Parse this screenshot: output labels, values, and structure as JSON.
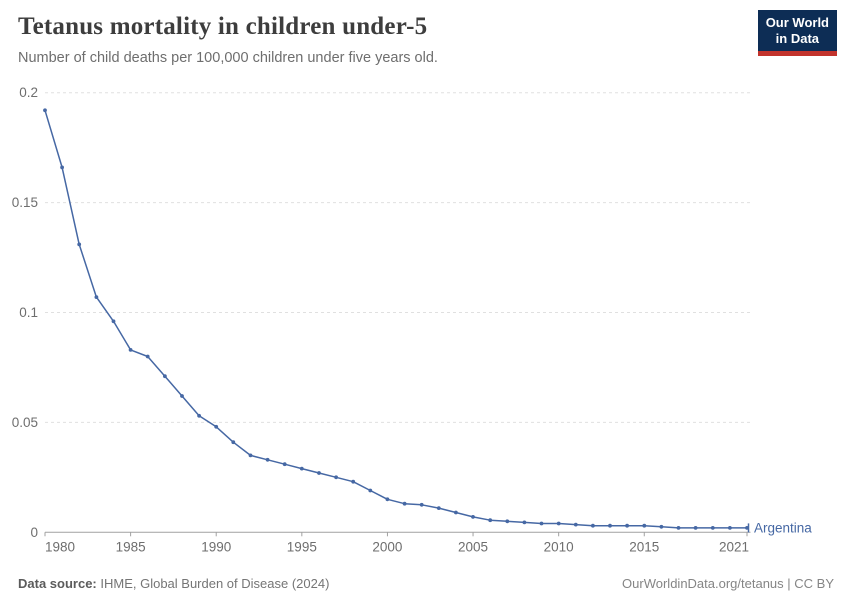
{
  "header": {
    "title": "Tetanus mortality in children under-5",
    "subtitle": "Number of child deaths per 100,000 children under five years old."
  },
  "logo": {
    "line1": "Our World",
    "line2": "in Data"
  },
  "chart_data": {
    "type": "line",
    "title": "Tetanus mortality in children under-5",
    "subtitle": "Number of child deaths per 100,000 children under five years old.",
    "xlabel": "",
    "ylabel": "",
    "xlim": [
      1980,
      2021
    ],
    "ylim": [
      0,
      0.2
    ],
    "grid": "horizontal-dashed",
    "legend_position": "end-of-line",
    "xticks": [
      1980,
      1985,
      1990,
      1995,
      2000,
      2005,
      2010,
      2015,
      2021
    ],
    "yticks": [
      0,
      0.05,
      0.1,
      0.15,
      0.2
    ],
    "ytick_labels": [
      "0",
      "0.05",
      "0.1",
      "0.15",
      "0.2"
    ],
    "x": [
      1980,
      1981,
      1982,
      1983,
      1984,
      1985,
      1986,
      1987,
      1988,
      1989,
      1990,
      1991,
      1992,
      1993,
      1994,
      1995,
      1996,
      1997,
      1998,
      1999,
      2000,
      2001,
      2002,
      2003,
      2004,
      2005,
      2006,
      2007,
      2008,
      2009,
      2010,
      2011,
      2012,
      2013,
      2014,
      2015,
      2016,
      2017,
      2018,
      2019,
      2020,
      2021
    ],
    "series": [
      {
        "name": "Argentina",
        "color": "#4668a4",
        "values": [
          0.192,
          0.166,
          0.131,
          0.107,
          0.096,
          0.083,
          0.08,
          0.071,
          0.062,
          0.053,
          0.048,
          0.041,
          0.035,
          0.033,
          0.031,
          0.029,
          0.027,
          0.025,
          0.023,
          0.019,
          0.015,
          0.013,
          0.0125,
          0.011,
          0.009,
          0.007,
          0.0055,
          0.005,
          0.0045,
          0.004,
          0.004,
          0.0035,
          0.003,
          0.003,
          0.003,
          0.003,
          0.0025,
          0.002,
          0.002,
          0.002,
          0.002,
          0.002
        ]
      }
    ]
  },
  "footer": {
    "source_label": "Data source:",
    "source_value": " IHME, Global Burden of Disease (2024)",
    "license": "OurWorldinData.org/tetanus | CC BY"
  },
  "colors": {
    "line": "#4668a4",
    "grid": "#e0e0e0",
    "axis": "#a1a1a1",
    "tick_text": "#6e6e6e",
    "title_text": "#3d3d3d",
    "subtitle_text": "#6e6e6e",
    "logo_bg": "#0d2d55",
    "logo_accent": "#c2332c"
  }
}
